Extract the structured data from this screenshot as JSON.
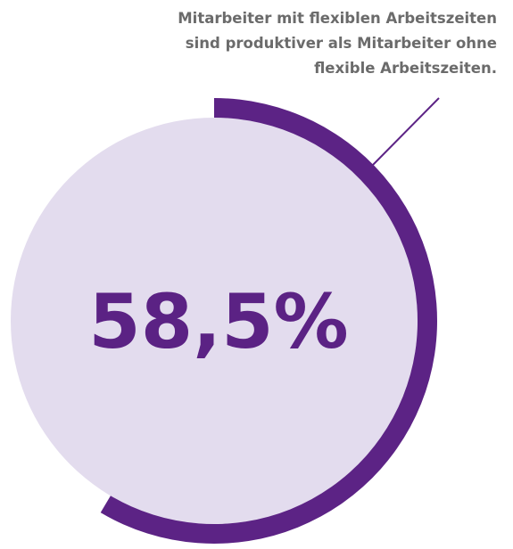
{
  "chart_data": {
    "type": "donut",
    "annotation": [
      "Mitarbeiter mit flexiblen Arbeitszeiten",
      "sind produktiver als Mitarbeiter ohne",
      "flexible Arbeitszeiten."
    ],
    "values": [
      58.5
    ],
    "value_labels": [
      "58,5%"
    ],
    "ylim": [
      0,
      100
    ],
    "color": "#5c2385",
    "background_color": "#e3dcee"
  }
}
